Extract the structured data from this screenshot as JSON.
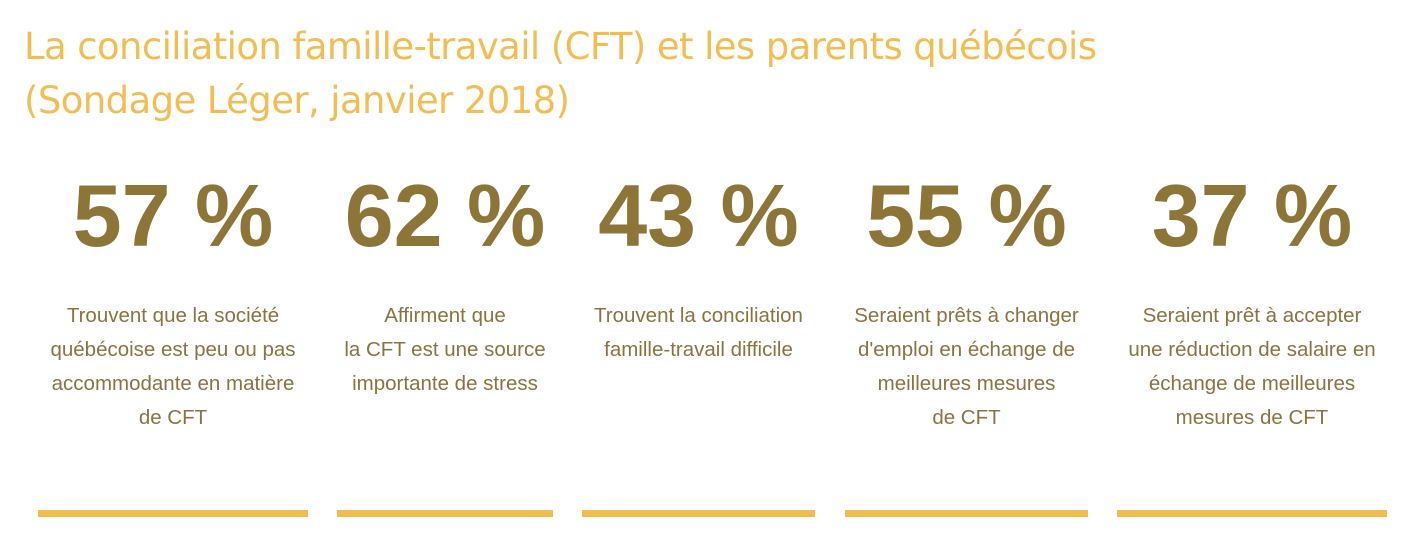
{
  "title": {
    "line1": "La conciliation famille-travail (CFT) et les parents québécois",
    "line2": "(Sondage Léger, janvier 2018)"
  },
  "stats": [
    {
      "value": "57 %",
      "lines": [
        "Trouvent que la société",
        "québécoise est peu ou pas",
        "accommodante en matière",
        "de CFT"
      ]
    },
    {
      "value": "62 %",
      "lines": [
        "Affirment que",
        "la CFT est une source",
        "importante de stress"
      ]
    },
    {
      "value": "43 %",
      "lines": [
        "Trouvent la conciliation",
        "famille-travail difficile"
      ]
    },
    {
      "value": "55 %",
      "lines": [
        "Seraient prêts à changer",
        "d'emploi en échange de",
        "meilleures mesures",
        "de CFT"
      ]
    },
    {
      "value": "37 %",
      "lines": [
        "Seraient prêt à accepter",
        "une réduction de salaire en",
        "échange de meilleures",
        "mesures de CFT"
      ]
    }
  ],
  "colors": {
    "title": "#f2bd53",
    "value": "#8d7538",
    "text": "#8b7340",
    "rule": "#f2bd4e"
  }
}
